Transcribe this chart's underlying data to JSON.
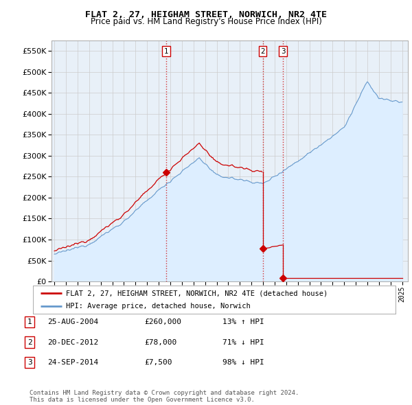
{
  "title": "FLAT 2, 27, HEIGHAM STREET, NORWICH, NR2 4TE",
  "subtitle": "Price paid vs. HM Land Registry's House Price Index (HPI)",
  "ylim": [
    0,
    575000
  ],
  "yticks": [
    0,
    50000,
    100000,
    150000,
    200000,
    250000,
    300000,
    350000,
    400000,
    450000,
    500000,
    550000
  ],
  "xlim_start": 1994.75,
  "xlim_end": 2025.5,
  "sale_dates": [
    2004.65,
    2012.97,
    2014.73
  ],
  "sale_prices": [
    260000,
    78000,
    7500
  ],
  "sale_labels": [
    "1",
    "2",
    "3"
  ],
  "vline_color": "#cc0000",
  "legend_property_label": "FLAT 2, 27, HEIGHAM STREET, NORWICH, NR2 4TE (detached house)",
  "legend_hpi_label": "HPI: Average price, detached house, Norwich",
  "property_line_color": "#cc0000",
  "hpi_line_color": "#6699cc",
  "hpi_fill_color": "#ddeeff",
  "table_rows": [
    {
      "num": "1",
      "date": "25-AUG-2004",
      "price": "£260,000",
      "hpi": "13% ↑ HPI"
    },
    {
      "num": "2",
      "date": "20-DEC-2012",
      "price": "£78,000",
      "hpi": "71% ↓ HPI"
    },
    {
      "num": "3",
      "date": "24-SEP-2014",
      "price": "£7,500",
      "hpi": "98% ↓ HPI"
    }
  ],
  "footer": "Contains HM Land Registry data © Crown copyright and database right 2024.\nThis data is licensed under the Open Government Licence v3.0.",
  "background_color": "#ffffff",
  "grid_color": "#cccccc"
}
